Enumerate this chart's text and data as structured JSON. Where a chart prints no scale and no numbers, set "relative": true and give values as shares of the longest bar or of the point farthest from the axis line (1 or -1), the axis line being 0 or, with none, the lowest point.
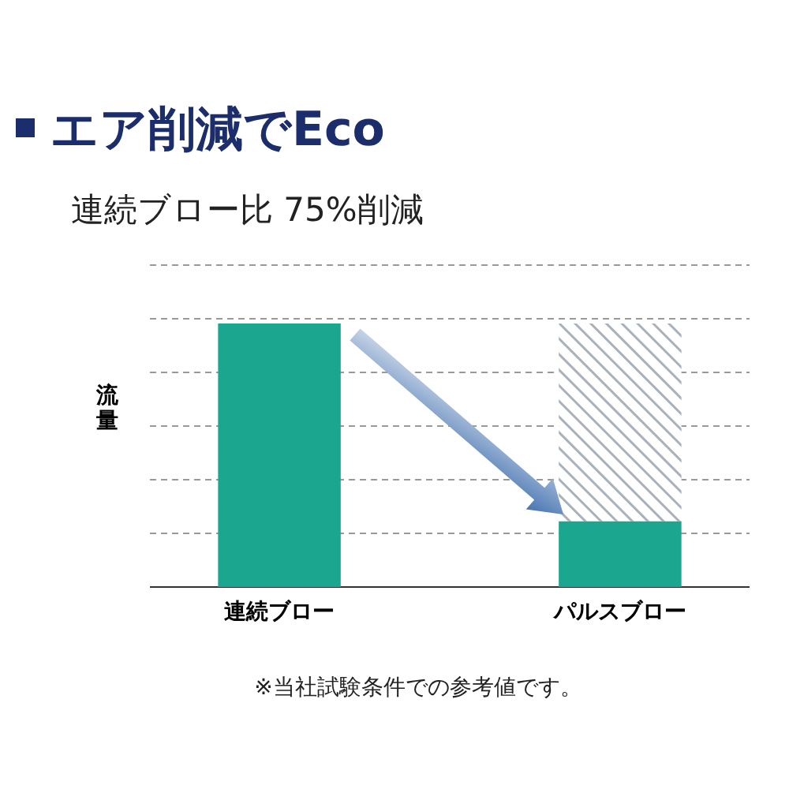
{
  "chart_data": {
    "type": "bar",
    "title": "エア削減でEco",
    "subtitle": "連続ブロー比 75%削減",
    "ylabel": "流量",
    "categories": [
      "連続ブロー",
      "パルスブロー"
    ],
    "stacked": true,
    "relative": true,
    "grid": true,
    "series": [
      {
        "color": "#1aa68f",
        "values": [
          1,
          0.25
        ]
      },
      {
        "color": "#a9b1bb",
        "values": [
          null,
          0.75
        ]
      }
    ],
    "annotations": [
      "※当社試験条件での参考値です。"
    ]
  }
}
